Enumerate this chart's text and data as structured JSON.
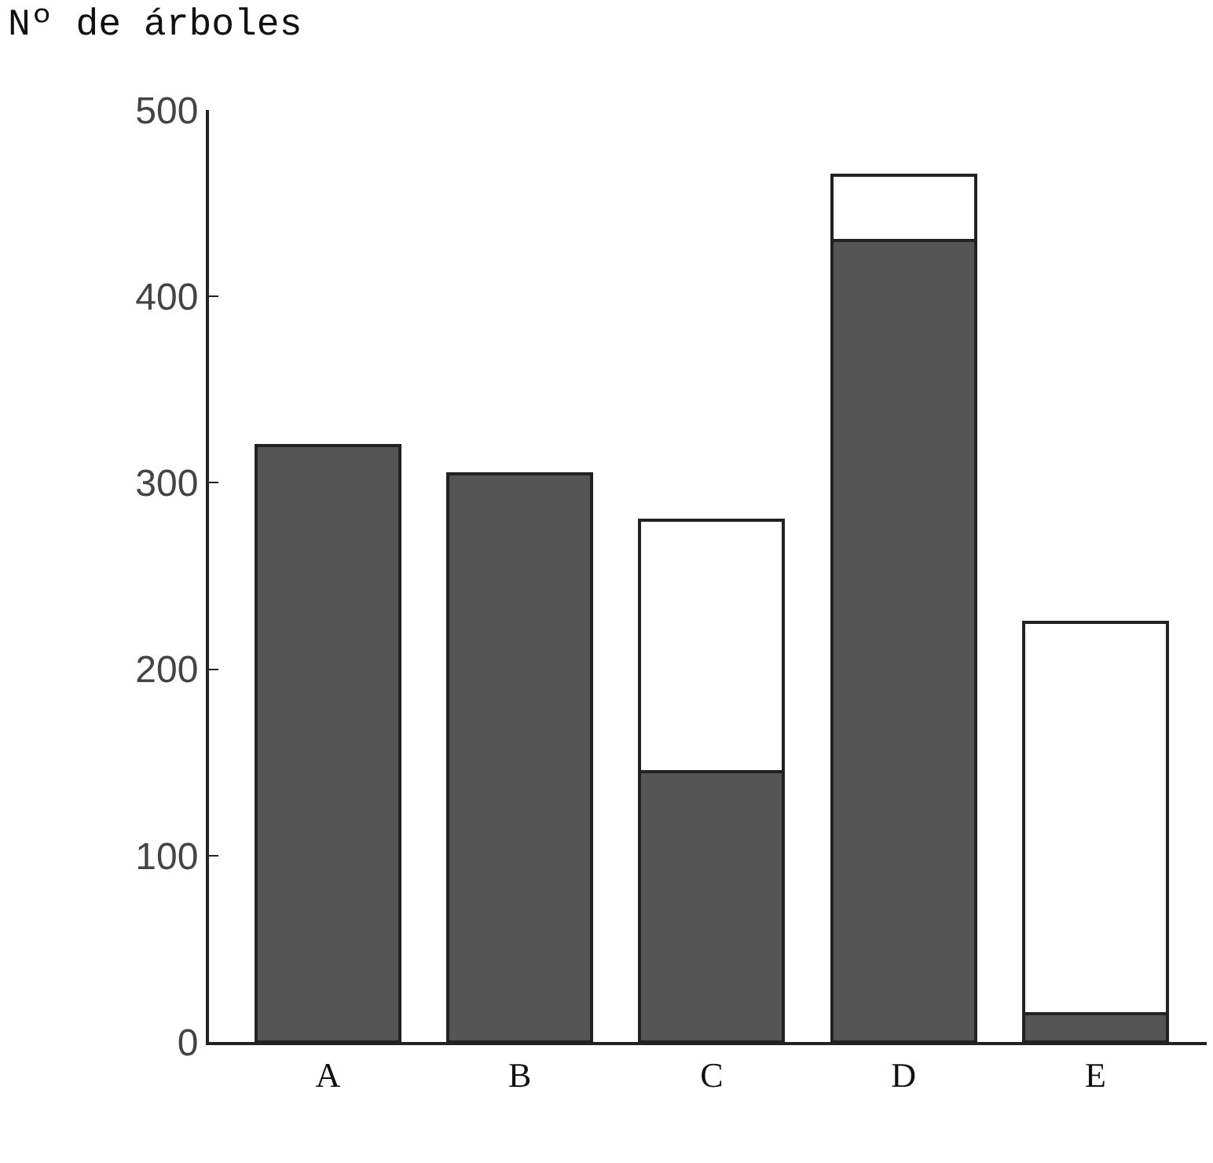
{
  "chart_data": {
    "type": "bar",
    "ylabel": "Nº de árboles",
    "categories": [
      "A",
      "B",
      "C",
      "D",
      "E"
    ],
    "stacked": true,
    "series": [
      {
        "color": "#555555",
        "values": [
          320,
          305,
          145,
          430,
          15
        ]
      },
      {
        "color": "#ffffff",
        "values": [
          null,
          null,
          135,
          35,
          210
        ]
      }
    ],
    "ylim": [
      0,
      500
    ],
    "yticks": [
      0,
      100,
      200,
      300,
      400,
      500
    ]
  }
}
